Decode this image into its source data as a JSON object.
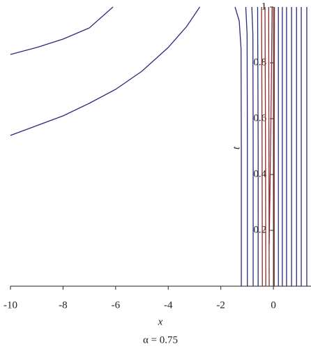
{
  "chart_data": {
    "type": "contour",
    "x_label": "x",
    "y_label": "t",
    "caption": "α = 0.75",
    "xlim": [
      -10,
      1.43
    ],
    "ylim": [
      0,
      1
    ],
    "xticks": [
      -10,
      -8,
      -6,
      -4,
      -2,
      0
    ],
    "yticks": [
      0.2,
      0.4,
      0.6,
      0.8,
      1
    ],
    "series": [
      {
        "color": "#2b2a7c",
        "x": [
          -10,
          -9,
          -8,
          -7,
          -6.1
        ],
        "y": [
          0.83,
          0.855,
          0.885,
          0.925,
          1.0
        ]
      },
      {
        "color": "#2b2a7c",
        "x": [
          -10,
          -9,
          -8,
          -7,
          -6,
          -5,
          -4,
          -3.3,
          -2.8
        ],
        "y": [
          0.54,
          0.575,
          0.61,
          0.655,
          0.705,
          0.77,
          0.855,
          0.93,
          1.0
        ]
      },
      {
        "color": "#2b2a7c",
        "x": [
          -1.46,
          -1.3,
          -1.23,
          -1.22,
          -1.22
        ],
        "y": [
          1.0,
          0.95,
          0.85,
          0.5,
          0
        ]
      },
      {
        "color": "#2b2a7c",
        "x": [
          -1.05,
          -1.0,
          -0.99,
          -0.99
        ],
        "y": [
          1.0,
          0.9,
          0.5,
          0
        ]
      },
      {
        "color": "#2b2a7c",
        "x": [
          -0.82,
          -0.78,
          -0.77,
          -0.77
        ],
        "y": [
          1.0,
          0.9,
          0.5,
          0
        ]
      },
      {
        "color": "#2b2a7c",
        "x": [
          -0.6,
          -0.58,
          -0.58
        ],
        "y": [
          1.0,
          0.5,
          0
        ]
      },
      {
        "color": "#8b2a2a",
        "x": [
          -0.45,
          -0.43,
          -0.42
        ],
        "y": [
          1.0,
          0.5,
          0
        ]
      },
      {
        "color": "#8b2a2a",
        "x": [
          -0.32,
          -0.3,
          -0.29
        ],
        "y": [
          1.0,
          0.5,
          0
        ]
      },
      {
        "color": "#8b2a2a",
        "x": [
          -0.18,
          -0.17,
          -0.16
        ],
        "y": [
          1.0,
          0.5,
          0
        ]
      },
      {
        "color": "#8b2a2a",
        "x": [
          -0.16,
          -0.12,
          -0.08,
          -0.05
        ],
        "y": [
          0.15,
          0.4,
          0.7,
          1.0
        ]
      },
      {
        "color": "#8b2a2a",
        "x": [
          0.04,
          0.03,
          0.03
        ],
        "y": [
          1.0,
          0.5,
          0
        ]
      },
      {
        "color": "#2b2a7c",
        "x": [
          0.19,
          0.19,
          0.19
        ],
        "y": [
          1.0,
          0.5,
          0
        ]
      },
      {
        "color": "#2b2a7c",
        "x": [
          0.34,
          0.34,
          0.34
        ],
        "y": [
          1.0,
          0.5,
          0
        ]
      },
      {
        "color": "#2b2a7c",
        "x": [
          0.5,
          0.5,
          0.5
        ],
        "y": [
          1.0,
          0.5,
          0
        ]
      },
      {
        "color": "#2b2a7c",
        "x": [
          0.69,
          0.69,
          0.69
        ],
        "y": [
          1.0,
          0.5,
          0
        ]
      },
      {
        "color": "#2b2a7c",
        "x": [
          0.88,
          0.88,
          0.88
        ],
        "y": [
          1.0,
          0.5,
          0
        ]
      },
      {
        "color": "#2b2a7c",
        "x": [
          1.06,
          1.06,
          1.06
        ],
        "y": [
          1.0,
          0.5,
          0
        ]
      },
      {
        "color": "#2b2a7c",
        "x": [
          1.27,
          1.27,
          1.27
        ],
        "y": [
          1.0,
          0.5,
          0
        ]
      }
    ]
  }
}
